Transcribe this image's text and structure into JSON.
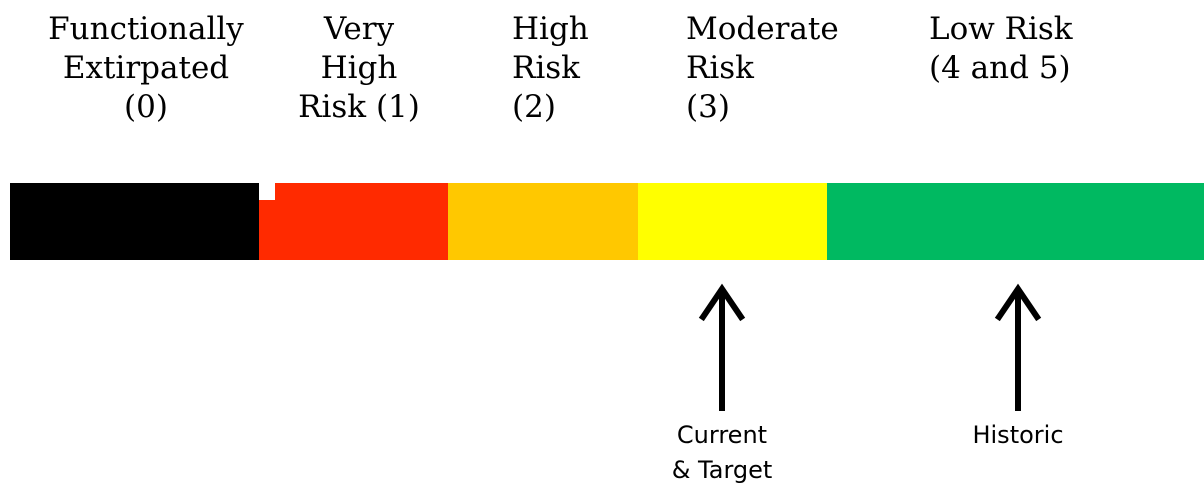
{
  "categories": [
    {
      "label": "Functionally\nExtirpated\n(0)",
      "color": "#000000"
    },
    {
      "label": "Very\nHigh\nRisk (1)",
      "color": "#ff2a00"
    },
    {
      "label": "High\nRisk\n(2)",
      "color": "#ffc800"
    },
    {
      "label": "Moderate\nRisk\n(3)",
      "color": "#ffff00"
    },
    {
      "label": "Low Risk\n(4 and 5)",
      "color": "#00b961"
    }
  ],
  "markers": [
    {
      "label": "Current\n& Target",
      "category": "Moderate Risk (3)",
      "icon": "arrow-up-icon"
    },
    {
      "label": "Historic",
      "category": "Low Risk (4 and 5)",
      "icon": "arrow-up-icon"
    }
  ]
}
